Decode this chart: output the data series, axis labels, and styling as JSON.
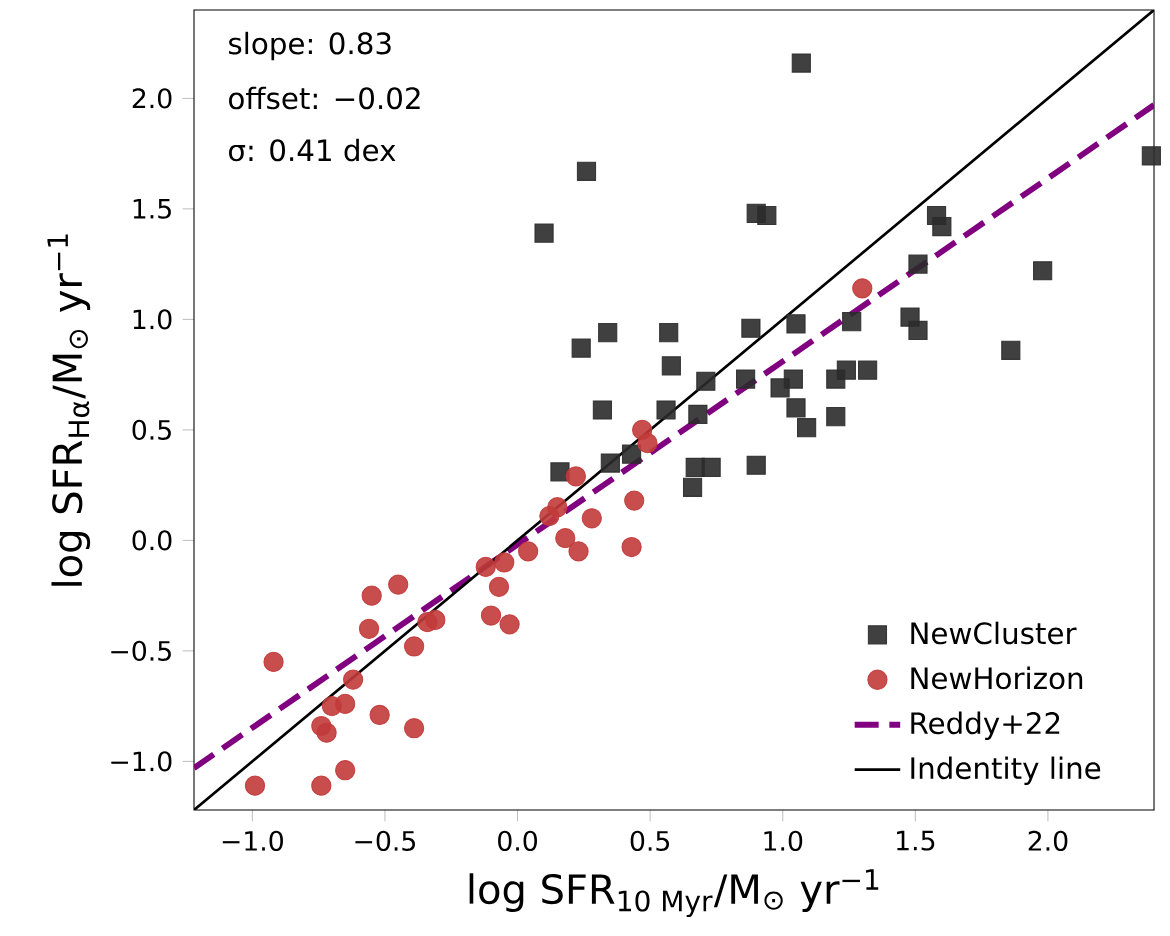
{
  "chart_data": {
    "type": "scatter",
    "xlabel": "log SFR$_{10 Myr}$/M$_{⊙}$ yr$^{−1}$",
    "ylabel": "log SFR$_{Hα}$/M$_{⊙}$ yr$^{−1}$",
    "xlim": [
      -1.22,
      2.4
    ],
    "ylim": [
      -1.22,
      2.4
    ],
    "xticks": [
      {
        "value": -1.0,
        "label": "−1.0"
      },
      {
        "value": -0.5,
        "label": "−0.5"
      },
      {
        "value": 0.0,
        "label": "0.0"
      },
      {
        "value": 0.5,
        "label": "0.5"
      },
      {
        "value": 1.0,
        "label": "1.0"
      },
      {
        "value": 1.5,
        "label": "1.5"
      },
      {
        "value": 2.0,
        "label": "2.0"
      }
    ],
    "yticks": [
      {
        "value": -1.0,
        "label": "−1.0"
      },
      {
        "value": -0.5,
        "label": "−0.5"
      },
      {
        "value": 0.0,
        "label": "0.0"
      },
      {
        "value": 0.5,
        "label": "0.5"
      },
      {
        "value": 1.0,
        "label": "1.0"
      },
      {
        "value": 1.5,
        "label": "1.5"
      },
      {
        "value": 2.0,
        "label": "2.0"
      }
    ],
    "grid": false,
    "legend": "bottom right",
    "annotations": [
      "slope: 0.83",
      "offset: −0.02",
      "σ: 0.41 dex"
    ],
    "series": [
      {
        "name": "NewCluster",
        "marker": "square",
        "color": "#2b2b2b",
        "x": [
          1.07,
          0.1,
          0.26,
          0.24,
          0.34,
          0.57,
          0.58,
          0.32,
          0.56,
          0.9,
          0.94,
          1.58,
          1.6,
          1.51,
          1.98,
          2.39,
          0.88,
          1.05,
          1.26,
          1.48,
          1.51,
          1.86,
          0.71,
          0.86,
          1.04,
          0.99,
          1.2,
          1.24,
          1.32,
          1.05,
          1.2,
          1.09,
          0.68,
          0.67,
          0.73,
          0.66,
          0.9,
          0.16,
          0.35,
          0.43
        ],
        "values": [
          2.16,
          1.39,
          1.67,
          0.87,
          0.94,
          0.94,
          0.79,
          0.59,
          0.59,
          1.48,
          1.47,
          1.47,
          1.42,
          1.25,
          1.22,
          1.74,
          0.96,
          0.98,
          0.99,
          1.01,
          0.95,
          0.86,
          0.72,
          0.73,
          0.73,
          0.69,
          0.73,
          0.77,
          0.77,
          0.6,
          0.56,
          0.51,
          0.57,
          0.33,
          0.33,
          0.24,
          0.34,
          0.31,
          0.35,
          0.39
        ]
      },
      {
        "name": "NewHorizon",
        "marker": "circle",
        "color": "#c23b3b",
        "x": [
          -0.99,
          -0.74,
          -0.65,
          -0.92,
          -0.62,
          -0.7,
          -0.65,
          -0.74,
          -0.72,
          -0.52,
          -0.39,
          -0.55,
          -0.45,
          -0.56,
          -0.39,
          -0.34,
          -0.31,
          -0.12,
          -0.05,
          -0.07,
          -0.1,
          -0.03,
          0.04,
          0.12,
          0.15,
          0.18,
          0.23,
          0.22,
          0.28,
          0.44,
          0.43,
          0.47,
          0.49,
          1.3
        ],
        "values": [
          -1.11,
          -1.11,
          -1.04,
          -0.55,
          -0.63,
          -0.75,
          -0.74,
          -0.84,
          -0.87,
          -0.79,
          -0.85,
          -0.25,
          -0.2,
          -0.4,
          -0.48,
          -0.37,
          -0.36,
          -0.12,
          -0.1,
          -0.21,
          -0.34,
          -0.38,
          -0.05,
          0.11,
          0.15,
          0.01,
          -0.05,
          0.29,
          0.1,
          0.18,
          -0.03,
          0.5,
          0.44,
          1.14
        ]
      },
      {
        "name": "Reddy+22",
        "type": "line",
        "line_style": "dashed",
        "color": "#800080",
        "x": [
          -1.22,
          2.4
        ],
        "values": [
          -1.03,
          1.97
        ]
      },
      {
        "name": "Indentity line",
        "type": "line",
        "line_style": "solid",
        "color": "#000000",
        "x": [
          -1.22,
          2.4
        ],
        "values": [
          -1.22,
          2.4
        ]
      }
    ]
  }
}
